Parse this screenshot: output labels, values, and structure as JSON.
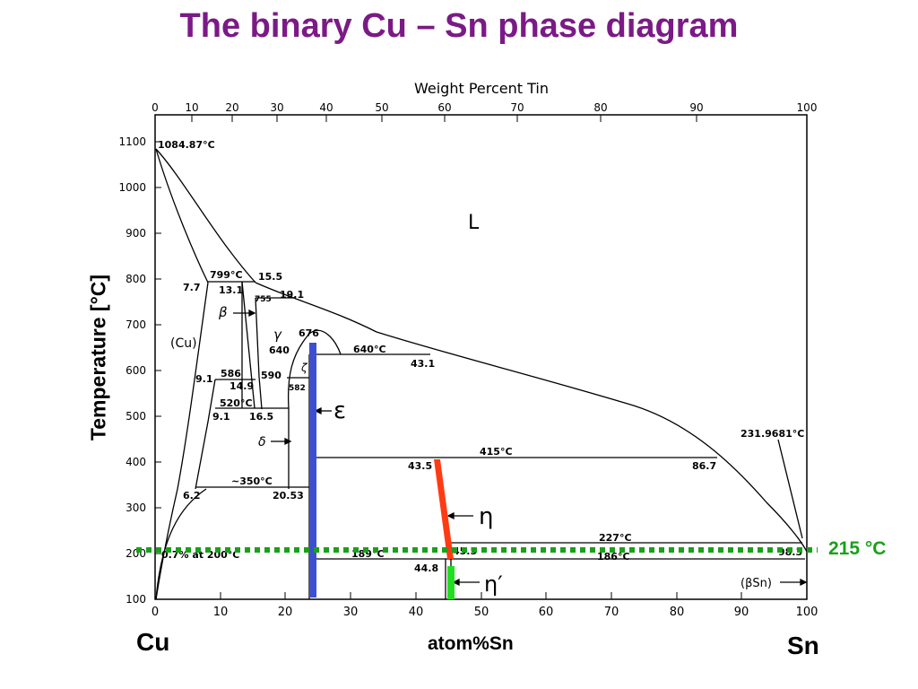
{
  "title": "The binary Cu – Sn phase diagram",
  "axes": {
    "top_label": "Weight Percent Tin",
    "bottom_label": "atom%Sn",
    "y_label": "Temperature [°C]",
    "left_element": "Cu",
    "right_element": "Sn",
    "x_ticks_at": [
      "0",
      "10",
      "20",
      "30",
      "40",
      "50",
      "60",
      "70",
      "80",
      "90",
      "100"
    ],
    "wt_ticks": [
      "0",
      "10",
      "20",
      "30",
      "40",
      "50",
      "60",
      "70",
      "80",
      "90",
      "100"
    ],
    "y_ticks": [
      "100",
      "200",
      "300",
      "400",
      "500",
      "600",
      "700",
      "800",
      "900",
      "1000",
      "1100"
    ]
  },
  "phases": {
    "L": "L",
    "cu": "(Cu)",
    "beta": "β",
    "gamma": "γ",
    "delta": "δ",
    "zeta": "ζ",
    "epsilon": "ε",
    "eta": "η",
    "eta_prime": "η′",
    "beta_sn": "(βSn)"
  },
  "annotations": {
    "cu_melt": "1084.87°C",
    "t799": "799°C",
    "c15_5": "15.5",
    "c7_7": "7.7",
    "c13_1": "13.1",
    "t755": "755",
    "c19_1": "19.1",
    "t676": "676",
    "t640l": "640",
    "t640": "640°C",
    "c43_1": "43.1",
    "t586": "586",
    "c9_1a": "9.1",
    "c14_9": "14.9",
    "t590": "590",
    "t582": "582",
    "t520": "520°C",
    "c9_1b": "9.1",
    "c16_5": "16.5",
    "t415": "415°C",
    "c43_5": "43.5",
    "c86_7": "86.7",
    "sn_melt": "231.9681°C",
    "t350": "~350°C",
    "c6_2": "6.2",
    "c20_53": "20.53",
    "t227": "227°C",
    "c98_3": "98.3",
    "c45_5": "45.5",
    "t189": "189°C",
    "t186": "186°C",
    "c44_8": "44.8",
    "c0_7": "0.7% at 200°C"
  },
  "highlight": {
    "label": "215 °C",
    "temperature_c": 215,
    "line_color": "#1aa01a"
  },
  "markers": [
    {
      "name": "epsilon",
      "color": "#3d4fd1"
    },
    {
      "name": "eta",
      "color": "#ff3b14"
    },
    {
      "name": "eta-prime",
      "color": "#22dd22"
    }
  ]
}
